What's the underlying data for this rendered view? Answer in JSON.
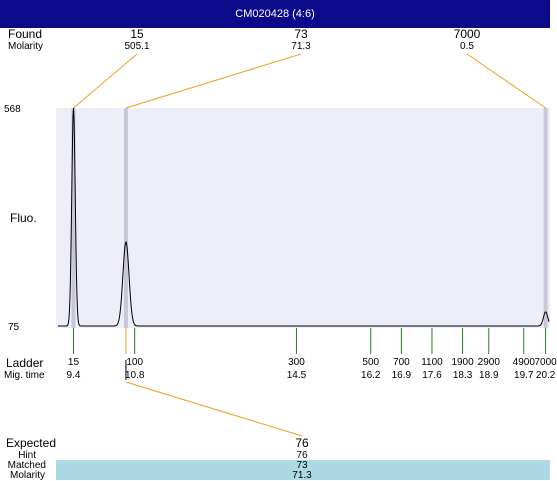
{
  "title": "CM020428 (4:6)",
  "found": {
    "row_label": "Found",
    "sub_label": "Molarity",
    "peaks": [
      {
        "size": "15",
        "molarity": "505.1"
      },
      {
        "size": "73",
        "molarity": "71.3"
      },
      {
        "size": "7000",
        "molarity": "0.5"
      }
    ]
  },
  "axis": {
    "y_top_label": "568",
    "y_bottom_label": "75",
    "y_title": "Fluo."
  },
  "ladder": {
    "row_label": "Ladder",
    "sub_label": "Mig. time",
    "items": [
      {
        "size": "15",
        "time": "9.4"
      },
      {
        "size": "100",
        "time": "10.8"
      },
      {
        "size": "300",
        "time": "14.5"
      },
      {
        "size": "500",
        "time": "16.2"
      },
      {
        "size": "700",
        "time": "16.9"
      },
      {
        "size": "1100",
        "time": "17.6"
      },
      {
        "size": "1900",
        "time": "18.3"
      },
      {
        "size": "2900",
        "time": "18.9"
      },
      {
        "size": "4900",
        "time": "19.7"
      },
      {
        "size": "7000",
        "time": "20.2"
      }
    ]
  },
  "expected": {
    "label_expected": "Expected",
    "label_hint": "Hint",
    "label_matched": "Matched",
    "label_molarity": "Molarity",
    "value_expected": "76",
    "value_hint": "76",
    "value_matched": "73",
    "value_molarity": "71.3"
  },
  "colors": {
    "title_bg": "#0a0a8a",
    "plot_bg": "#eeeef8",
    "peak_band": "#c8c8d8",
    "leader_line": "#f0a020",
    "ladder_tick": "#208020",
    "matched_bg": "#add8e6"
  },
  "chart_data": {
    "type": "line",
    "xlabel": "Mig. time",
    "ylabel": "Fluo.",
    "ylim": [
      75,
      568
    ],
    "xlim": [
      9.0,
      20.3
    ],
    "grid": false,
    "series": [
      {
        "values": [
          {
            "x": 9.4,
            "y": 568
          },
          {
            "x": 10.6,
            "y": 265
          },
          {
            "x": 20.2,
            "y": 107
          }
        ]
      }
    ],
    "ladder_times": [
      9.4,
      10.8,
      14.5,
      16.2,
      16.9,
      17.6,
      18.3,
      18.9,
      19.7,
      20.2
    ],
    "found_times": [
      9.4,
      10.6,
      20.2
    ]
  }
}
